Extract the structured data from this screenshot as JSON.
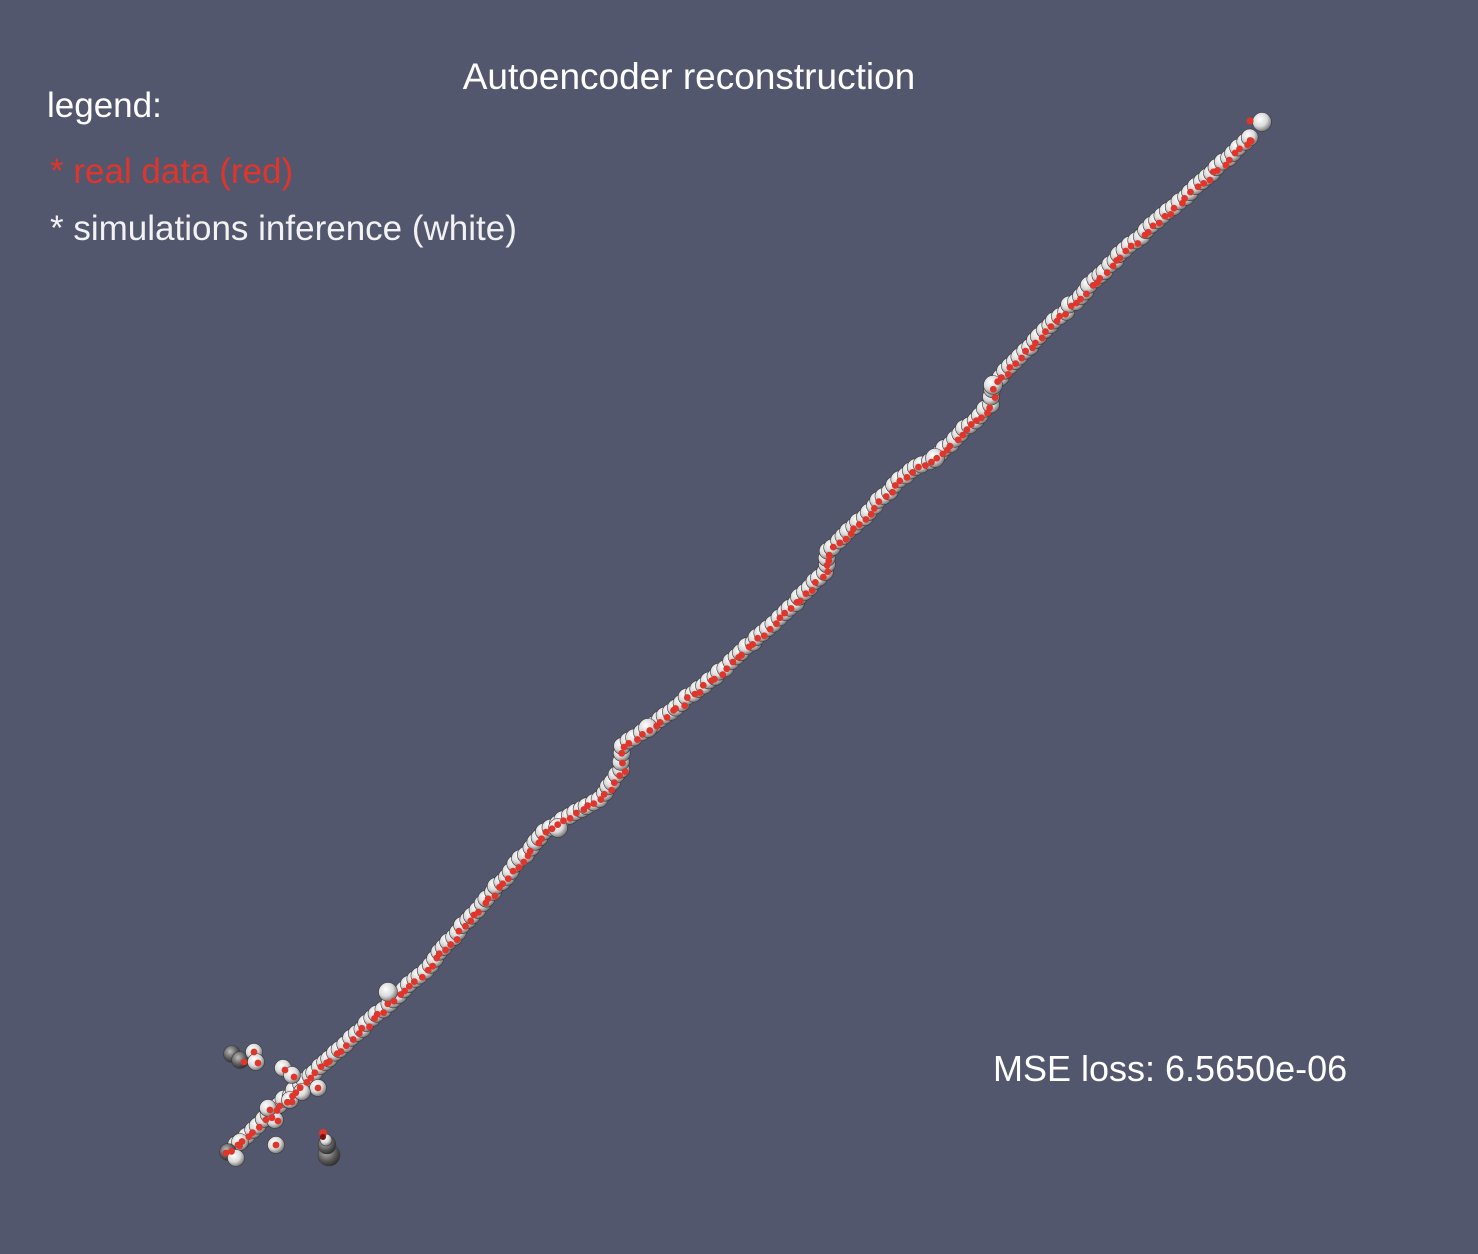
{
  "title": "Autoencoder reconstruction",
  "legend": {
    "heading": "legend:",
    "real_label": "* real data (red)",
    "sim_label": "* simulations inference (white)"
  },
  "mse_label": "MSE loss: 6.5650e-06",
  "colors": {
    "background": "#52576e",
    "real_data": "#e0352b",
    "simulation": "#f2f2f2",
    "text": "#ffffff"
  }
}
